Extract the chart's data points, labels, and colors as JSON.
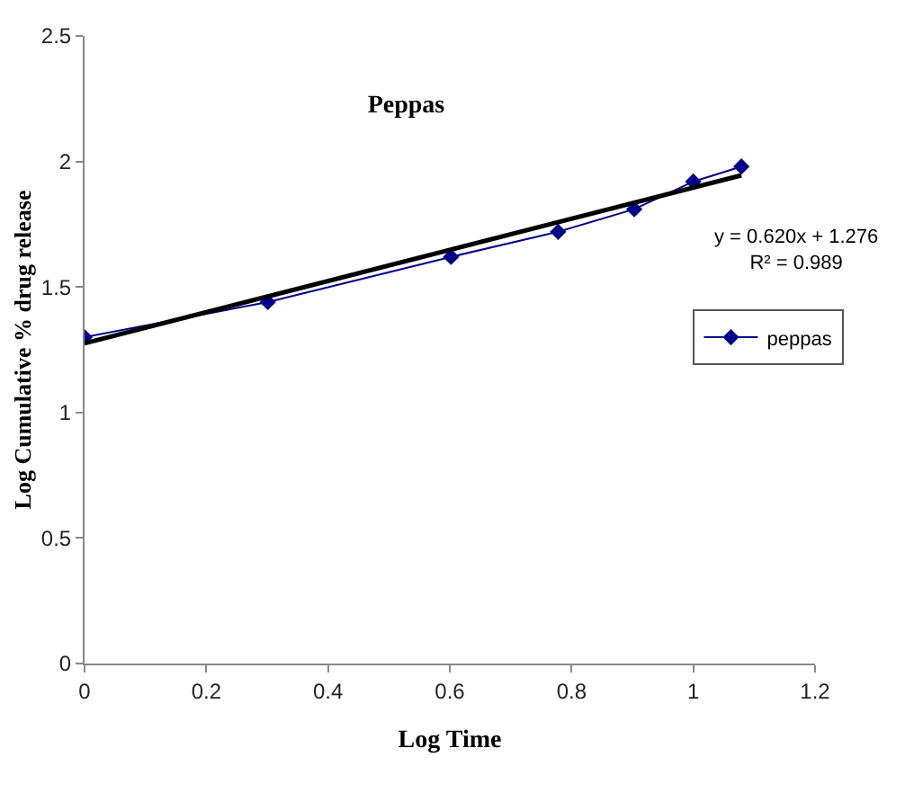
{
  "chart_data": {
    "type": "line",
    "title": "Peppas",
    "xlabel": "Log Time",
    "ylabel": "Log Cumulative % drug release",
    "x": [
      0,
      0.301,
      0.602,
      0.778,
      0.903,
      1.0,
      1.079
    ],
    "series": [
      {
        "name": "peppas",
        "color": "#00008b",
        "marker": "diamond",
        "values": [
          1.3,
          1.44,
          1.62,
          1.72,
          1.81,
          1.92,
          1.98
        ]
      },
      {
        "type": "line",
        "color": "#000000",
        "marker": "none",
        "x": [
          0,
          1.079
        ],
        "values": [
          1.276,
          1.945
        ]
      }
    ],
    "annotations": [
      "y = 0.620x + 1.276\nR² = 0.989"
    ],
    "xlim": [
      0,
      1.2
    ],
    "xticks": [
      0,
      0.2,
      0.4,
      0.6,
      0.8,
      1,
      1.2
    ],
    "ylim": [
      0,
      2.5
    ],
    "yticks": [
      0,
      0.5,
      1,
      1.5,
      2,
      2.5
    ],
    "legend": "right"
  }
}
